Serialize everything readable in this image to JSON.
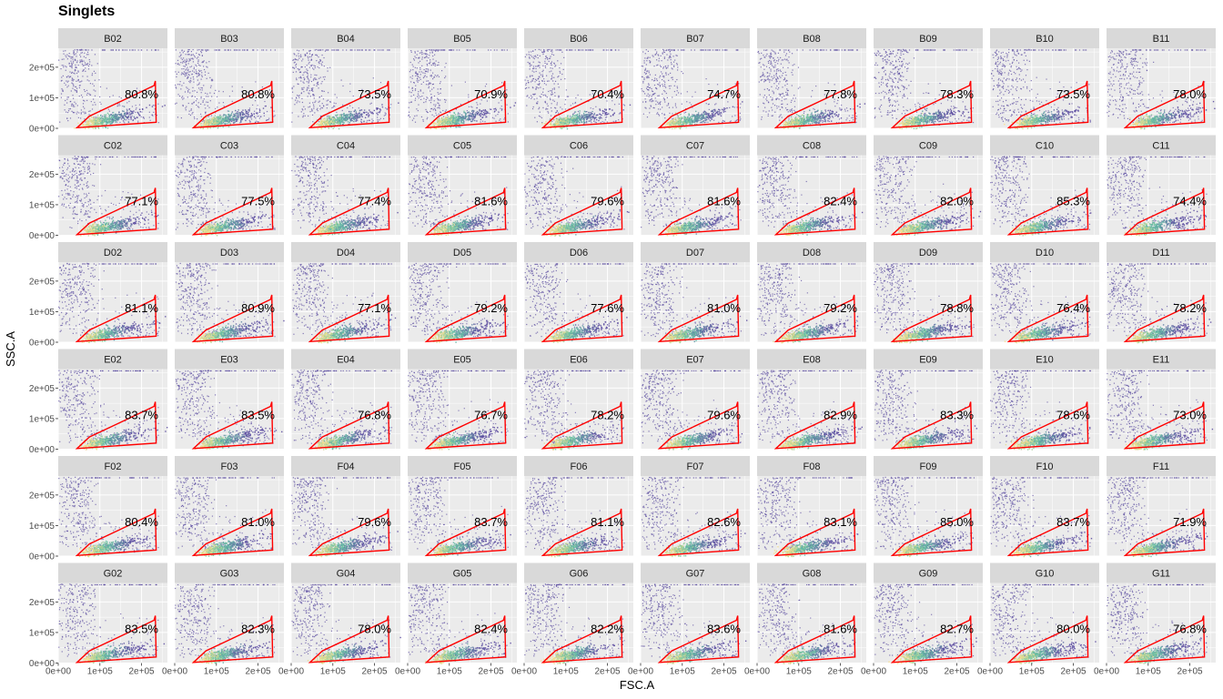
{
  "chart_data": {
    "type": "scatter",
    "plot_kind": "faceted density scatter with gate polygon",
    "title": "Singlets",
    "xlabel": "FSC.A",
    "ylabel": "SSC.A",
    "xlim": [
      0,
      262144
    ],
    "ylim": [
      0,
      262144
    ],
    "x_ticks": [
      "0e+00",
      "1e+05",
      "2e+05"
    ],
    "y_ticks": [
      "0e+00",
      "1e+05",
      "2e+05"
    ],
    "x_tick_values": [
      0,
      100000,
      200000
    ],
    "y_tick_values": [
      0,
      100000,
      200000
    ],
    "grid": true,
    "colors": {
      "panel_bg": "#ebebeb",
      "strip_bg": "#d9d9d9",
      "grid_line": "#ffffff",
      "gate": "#ff0000",
      "density_low": "#5e4fa2",
      "density_mid": "#66c2a5",
      "density_high": "#fee08b"
    },
    "gate_polygon": [
      [
        45000,
        2000
      ],
      [
        75000,
        40000
      ],
      [
        145000,
        85000
      ],
      [
        230000,
        140000
      ],
      [
        233000,
        155000
      ],
      [
        235000,
        20000
      ]
    ],
    "facet_cols": [
      "02",
      "03",
      "04",
      "05",
      "06",
      "07",
      "08",
      "09",
      "10",
      "11"
    ],
    "facets": [
      {
        "row": "B",
        "labels": [
          "B02",
          "B03",
          "B04",
          "B05",
          "B06",
          "B07",
          "B08",
          "B09",
          "B10",
          "B11"
        ],
        "values": [
          "80.8%",
          "80.8%",
          "73.5%",
          "70.9%",
          "70.4%",
          "74.7%",
          "77.8%",
          "78.3%",
          "73.5%",
          "78.0%"
        ]
      },
      {
        "row": "C",
        "labels": [
          "C02",
          "C03",
          "C04",
          "C05",
          "C06",
          "C07",
          "C08",
          "C09",
          "C10",
          "C11"
        ],
        "values": [
          "77.1%",
          "77.5%",
          "77.4%",
          "81.6%",
          "79.6%",
          "81.6%",
          "82.4%",
          "82.0%",
          "85.3%",
          "74.4%"
        ]
      },
      {
        "row": "D",
        "labels": [
          "D02",
          "D03",
          "D04",
          "D05",
          "D06",
          "D07",
          "D08",
          "D09",
          "D10",
          "D11"
        ],
        "values": [
          "81.1%",
          "80.9%",
          "77.1%",
          "79.2%",
          "77.6%",
          "81.0%",
          "79.2%",
          "78.8%",
          "76.4%",
          "78.2%"
        ]
      },
      {
        "row": "E",
        "labels": [
          "E02",
          "E03",
          "E04",
          "E05",
          "E06",
          "E07",
          "E08",
          "E09",
          "E10",
          "E11"
        ],
        "values": [
          "83.7%",
          "83.5%",
          "76.8%",
          "76.7%",
          "78.2%",
          "79.6%",
          "82.9%",
          "83.3%",
          "78.6%",
          "73.0%"
        ]
      },
      {
        "row": "F",
        "labels": [
          "F02",
          "F03",
          "F04",
          "F05",
          "F06",
          "F07",
          "F08",
          "F09",
          "F10",
          "F11"
        ],
        "values": [
          "80.4%",
          "81.0%",
          "79.6%",
          "83.7%",
          "81.1%",
          "82.6%",
          "83.1%",
          "85.0%",
          "83.7%",
          "71.9%"
        ]
      },
      {
        "row": "G",
        "labels": [
          "G02",
          "G03",
          "G04",
          "G05",
          "G06",
          "G07",
          "G08",
          "G09",
          "G10",
          "G11"
        ],
        "values": [
          "83.5%",
          "82.3%",
          "78.0%",
          "82.4%",
          "82.2%",
          "83.6%",
          "81.6%",
          "82.7%",
          "80.0%",
          "76.8%"
        ]
      }
    ]
  }
}
